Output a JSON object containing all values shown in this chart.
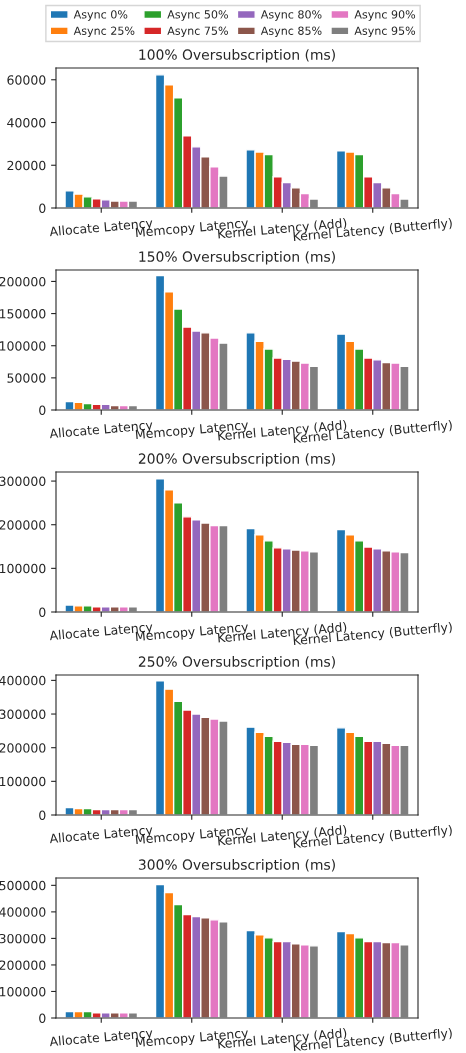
{
  "chart_data": [
    {
      "type": "bar",
      "title": "100% Oversubscription (ms)",
      "legend": "top",
      "categories": [
        "Allocate Latency",
        "Memcopy Latency",
        "Kernel Latency (Add)",
        "Kernel Latency (Butterfly)"
      ],
      "ylim": [
        0,
        65500
      ],
      "yticks": [
        0,
        20000,
        40000,
        60000
      ],
      "series": [
        {
          "name": "Async 0%",
          "color": "#1f77b4",
          "values": [
            8000,
            62300,
            27200,
            26800
          ]
        },
        {
          "name": "Async 25%",
          "color": "#ff7f0e",
          "values": [
            6500,
            57600,
            26200,
            26200
          ]
        },
        {
          "name": "Async 50%",
          "color": "#2ca02c",
          "values": [
            5200,
            51500,
            25000,
            25000
          ]
        },
        {
          "name": "Async 75%",
          "color": "#d62728",
          "values": [
            4300,
            33800,
            14600,
            14600
          ]
        },
        {
          "name": "Async 80%",
          "color": "#9467bd",
          "values": [
            3800,
            28600,
            11900,
            11900
          ]
        },
        {
          "name": "Async 85%",
          "color": "#8c564b",
          "values": [
            3300,
            24000,
            9400,
            9400
          ]
        },
        {
          "name": "Async 90%",
          "color": "#e377c2",
          "values": [
            3300,
            19300,
            6700,
            6700
          ]
        },
        {
          "name": "Async 95%",
          "color": "#7f7f7f",
          "values": [
            3300,
            15000,
            4200,
            4200
          ]
        }
      ]
    },
    {
      "type": "bar",
      "title": "150% Oversubscription (ms)",
      "categories": [
        "Allocate Latency",
        "Memcopy Latency",
        "Kernel Latency (Add)",
        "Kernel Latency (Butterfly)"
      ],
      "ylim": [
        0,
        217800
      ],
      "yticks": [
        0,
        50000,
        100000,
        150000,
        200000
      ],
      "series": [
        {
          "color": "#1f77b4",
          "values": [
            13000,
            209000,
            120000,
            118000
          ]
        },
        {
          "color": "#ff7f0e",
          "values": [
            12000,
            184000,
            107000,
            107000
          ]
        },
        {
          "color": "#2ca02c",
          "values": [
            10000,
            157000,
            95000,
            95000
          ]
        },
        {
          "color": "#d62728",
          "values": [
            9000,
            129000,
            81000,
            81000
          ]
        },
        {
          "color": "#9467bd",
          "values": [
            9000,
            123000,
            79000,
            78000
          ]
        },
        {
          "color": "#8c564b",
          "values": [
            7000,
            120000,
            76000,
            74000
          ]
        },
        {
          "color": "#e377c2",
          "values": [
            7000,
            112000,
            73000,
            73000
          ]
        },
        {
          "color": "#7f7f7f",
          "values": [
            7000,
            104000,
            68000,
            68000
          ]
        }
      ]
    },
    {
      "type": "bar",
      "title": "200% Oversubscription (ms)",
      "categories": [
        "Allocate Latency",
        "Memcopy Latency",
        "Kernel Latency (Add)",
        "Kernel Latency (Butterfly)"
      ],
      "ylim": [
        0,
        320800
      ],
      "yticks": [
        0,
        100000,
        200000,
        300000
      ],
      "series": [
        {
          "color": "#1f77b4",
          "values": [
            16000,
            305000,
            191000,
            189000
          ]
        },
        {
          "color": "#ff7f0e",
          "values": [
            14000,
            280000,
            177000,
            177000
          ]
        },
        {
          "color": "#2ca02c",
          "values": [
            14000,
            250000,
            163000,
            163000
          ]
        },
        {
          "color": "#d62728",
          "values": [
            12000,
            218000,
            147000,
            149000
          ]
        },
        {
          "color": "#9467bd",
          "values": [
            12000,
            211000,
            145000,
            145000
          ]
        },
        {
          "color": "#8c564b",
          "values": [
            12000,
            204000,
            142000,
            140000
          ]
        },
        {
          "color": "#e377c2",
          "values": [
            12000,
            198000,
            140000,
            138000
          ]
        },
        {
          "color": "#7f7f7f",
          "values": [
            12000,
            198000,
            138000,
            136000
          ]
        }
      ]
    },
    {
      "type": "bar",
      "title": "250% Oversubscription (ms)",
      "categories": [
        "Allocate Latency",
        "Memcopy Latency",
        "Kernel Latency (Add)",
        "Kernel Latency (Butterfly)"
      ],
      "ylim": [
        0,
        416000
      ],
      "yticks": [
        0,
        100000,
        200000,
        300000,
        400000
      ],
      "series": [
        {
          "color": "#1f77b4",
          "values": [
            22000,
            399000,
            261000,
            259000
          ]
        },
        {
          "color": "#ff7f0e",
          "values": [
            19000,
            374000,
            246000,
            246000
          ]
        },
        {
          "color": "#2ca02c",
          "values": [
            19000,
            338000,
            234000,
            234000
          ]
        },
        {
          "color": "#d62728",
          "values": [
            16000,
            312000,
            219000,
            219000
          ]
        },
        {
          "color": "#9467bd",
          "values": [
            16000,
            300000,
            216000,
            219000
          ]
        },
        {
          "color": "#8c564b",
          "values": [
            16000,
            290000,
            210000,
            213000
          ]
        },
        {
          "color": "#e377c2",
          "values": [
            16000,
            285000,
            210000,
            207000
          ]
        },
        {
          "color": "#7f7f7f",
          "values": [
            16000,
            279000,
            207000,
            207000
          ]
        }
      ]
    },
    {
      "type": "bar",
      "title": "300% Oversubscription (ms)",
      "categories": [
        "Allocate Latency",
        "Memcopy Latency",
        "Kernel Latency (Add)",
        "Kernel Latency (Butterfly)"
      ],
      "ylim": [
        0,
        527700
      ],
      "yticks": [
        0,
        100000,
        200000,
        300000,
        400000,
        500000
      ],
      "series": [
        {
          "color": "#1f77b4",
          "values": [
            24000,
            503000,
            330000,
            326000
          ]
        },
        {
          "color": "#ff7f0e",
          "values": [
            24000,
            473000,
            314000,
            318000
          ]
        },
        {
          "color": "#2ca02c",
          "values": [
            24000,
            428000,
            302000,
            302000
          ]
        },
        {
          "color": "#d62728",
          "values": [
            20000,
            390000,
            288000,
            288000
          ]
        },
        {
          "color": "#9467bd",
          "values": [
            20000,
            382000,
            288000,
            288000
          ]
        },
        {
          "color": "#8c564b",
          "values": [
            20000,
            378000,
            280000,
            284000
          ]
        },
        {
          "color": "#e377c2",
          "values": [
            20000,
            370000,
            276000,
            284000
          ]
        },
        {
          "color": "#7f7f7f",
          "values": [
            20000,
            363000,
            272000,
            276000
          ]
        }
      ]
    }
  ]
}
